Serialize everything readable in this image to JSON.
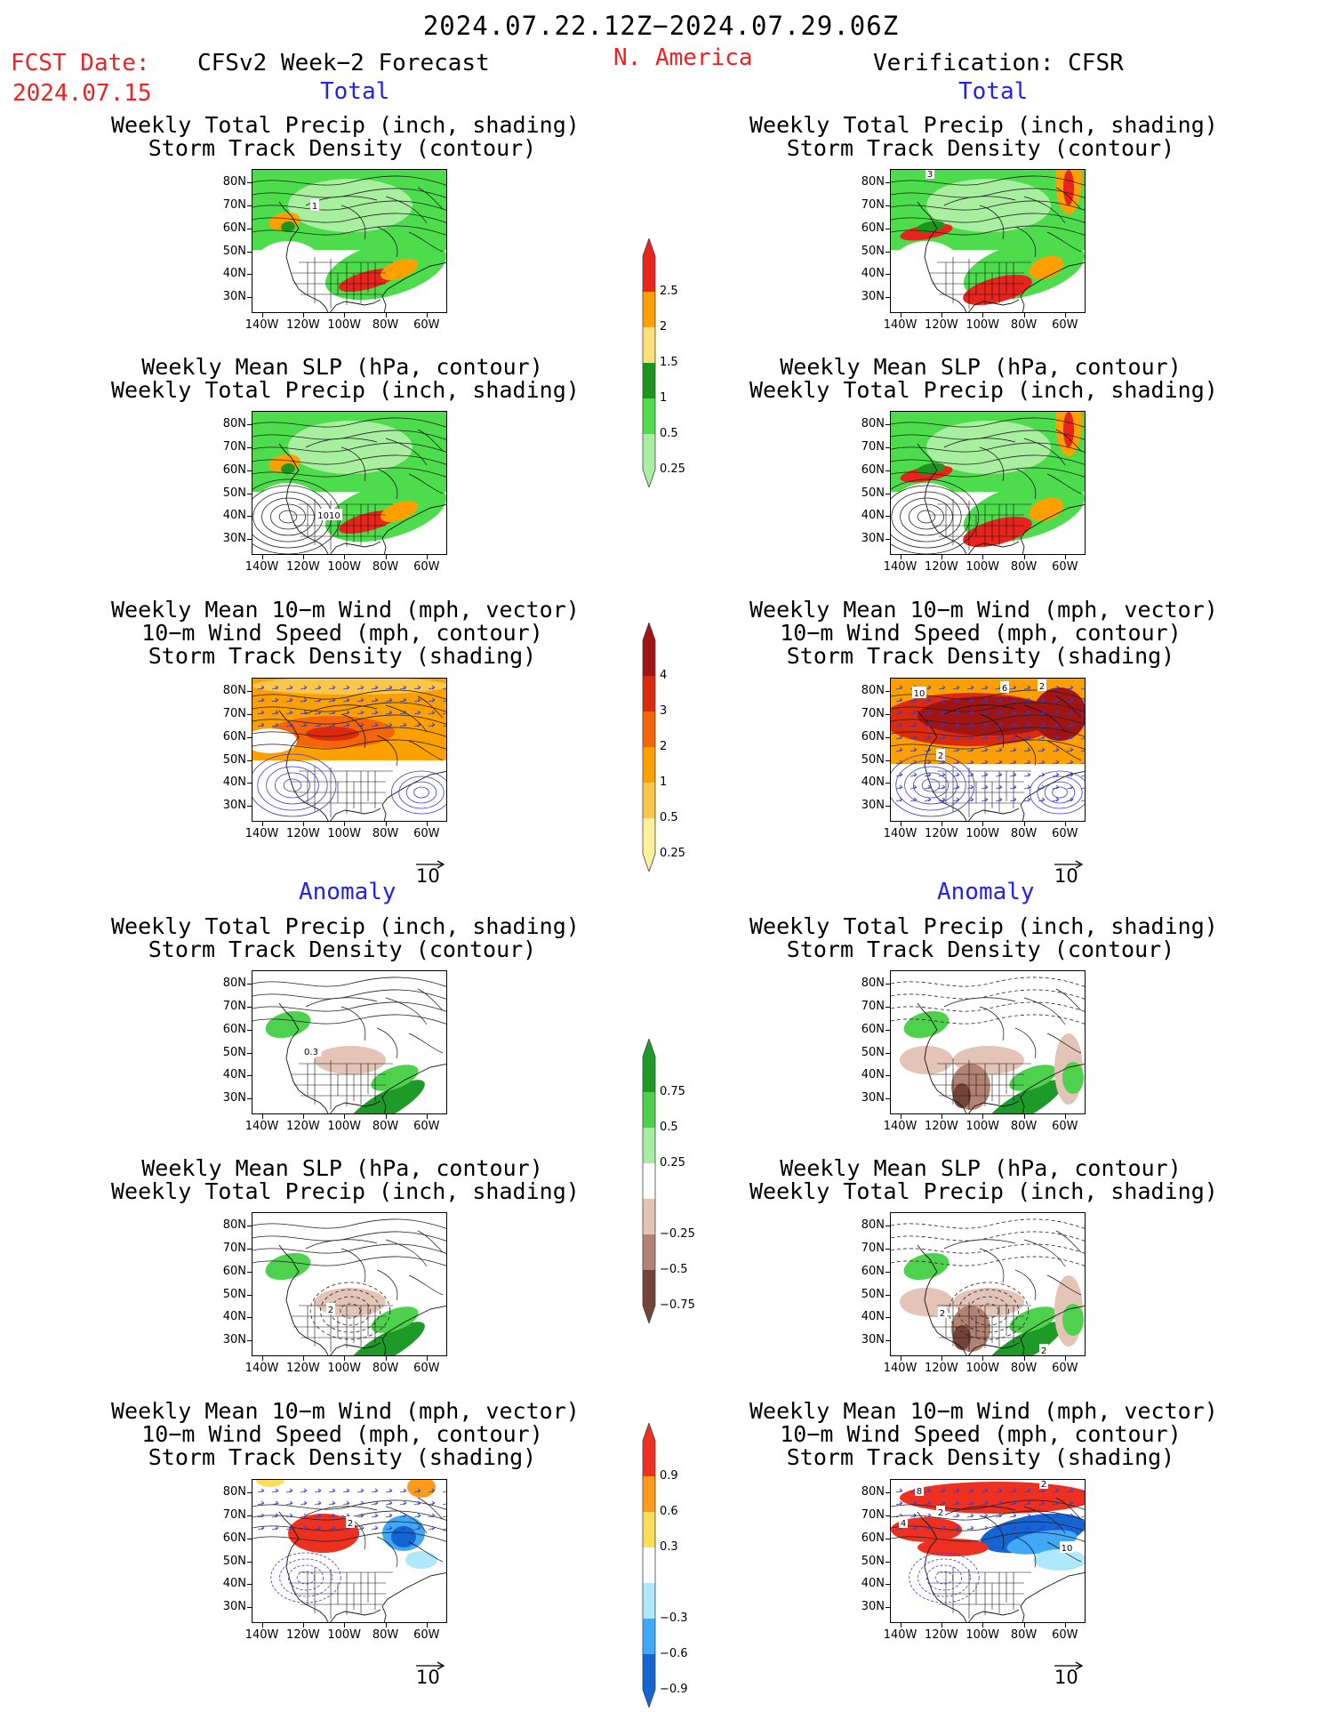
{
  "header": {
    "period": "2024.07.22.12Z−2024.07.29.06Z",
    "fcst_label": "FCST Date:",
    "fcst_date": "2024.07.15",
    "left_title": "CFSv2 Week−2 Forecast",
    "region": "N. America",
    "right_title": "Verification: CFSR"
  },
  "sections": {
    "total": "Total",
    "anomaly": "Anomaly"
  },
  "titles": {
    "precip_track": [
      "Weekly Total Precip (inch, shading)",
      "Storm Track Density (contour)"
    ],
    "slp_precip": [
      "Weekly Mean SLP (hPa, contour)",
      "Weekly Total Precip (inch, shading)"
    ],
    "wind_track": [
      "Weekly Mean 10−m Wind (mph, vector)",
      "10−m Wind Speed (mph, contour)",
      "Storm Track Density (shading)"
    ]
  },
  "axes": {
    "lat": [
      "80N",
      "70N",
      "60N",
      "50N",
      "40N",
      "30N"
    ],
    "lon": [
      "140W",
      "120W",
      "100W",
      "80W",
      "60W"
    ]
  },
  "vector_scale": "10",
  "panel_labels": {
    "fc_precip": [
      "1"
    ],
    "fc_slp": [
      "1010"
    ],
    "fc_anom_precip": [
      "0.3"
    ],
    "fc_anom_slp": [
      "2"
    ],
    "fc_anom_wind": [
      "2"
    ],
    "ob_precip": [
      "3"
    ],
    "ob_wind": [
      "10",
      "2",
      "6",
      "2"
    ],
    "ob_anom_slp": [
      "2",
      "2"
    ],
    "ob_anom_wind": [
      "8",
      "2",
      "2",
      "4",
      "10"
    ]
  },
  "colorbars": {
    "precip": {
      "labels": [
        "2.5",
        "2",
        "1.5",
        "1",
        "0.5",
        "0.25"
      ],
      "colors": [
        "#e8241c",
        "#ffa000",
        "#ffe07a",
        "#1e961e",
        "#4cdc4c",
        "#a8f0a0"
      ]
    },
    "track": {
      "labels": [
        "4",
        "3",
        "2",
        "1",
        "0.5",
        "0.25"
      ],
      "colors": [
        "#a01414",
        "#dc2a0e",
        "#f46408",
        "#fca000",
        "#fcc64a",
        "#fff09c"
      ]
    },
    "precip_anom": {
      "labels": [
        "0.75",
        "0.5",
        "0.25",
        "−0.25",
        "−0.5",
        "−0.75"
      ],
      "colors": [
        "#1e9a28",
        "#4ed24e",
        "#a6eea0",
        "#ffffff",
        "#e4c4b6",
        "#b28272",
        "#74443a"
      ]
    },
    "wind_anom": {
      "labels": [
        "0.9",
        "0.6",
        "0.3",
        "−0.3",
        "−0.6",
        "−0.9"
      ],
      "colors": [
        "#ee3020",
        "#ff9a1a",
        "#ffdc5a",
        "#ffffff",
        "#aee8fa",
        "#40a8f4",
        "#1464d2"
      ]
    }
  },
  "colors": {
    "red_text": "#ee2222",
    "blue_text": "#2222ee",
    "wind_contour": "#3a3acc"
  }
}
